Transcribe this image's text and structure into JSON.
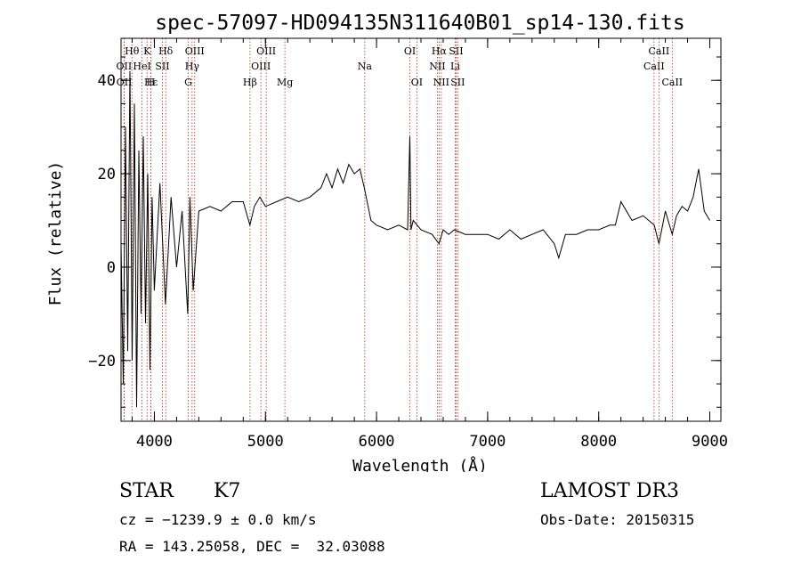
{
  "chart_data": {
    "type": "line",
    "title": "spec-57097-HD094135N311640B01_sp14-130.fits",
    "xlabel": "Wavelength (Å)",
    "ylabel": "Flux (relative)",
    "xlim": [
      3700,
      9100
    ],
    "ylim": [
      -33,
      49
    ],
    "x_ticks": [
      4000,
      5000,
      6000,
      7000,
      8000,
      9000
    ],
    "y_ticks": [
      -20,
      0,
      20,
      40
    ],
    "grid": false,
    "series": [
      {
        "color": "#000000",
        "x": [
          3700,
          3720,
          3740,
          3760,
          3780,
          3800,
          3820,
          3840,
          3860,
          3880,
          3900,
          3920,
          3940,
          3960,
          3980,
          4000,
          4050,
          4100,
          4150,
          4200,
          4250,
          4300,
          4320,
          4350,
          4400,
          4500,
          4600,
          4700,
          4800,
          4860,
          4900,
          4950,
          5000,
          5100,
          5200,
          5300,
          5400,
          5500,
          5550,
          5600,
          5650,
          5700,
          5750,
          5800,
          5850,
          5890,
          5950,
          6000,
          6100,
          6200,
          6280,
          6300,
          6310,
          6330,
          6400,
          6500,
          6562,
          6600,
          6650,
          6700,
          6800,
          6900,
          7000,
          7100,
          7200,
          7300,
          7400,
          7500,
          7600,
          7640,
          7700,
          7800,
          7900,
          8000,
          8100,
          8150,
          8200,
          8300,
          8400,
          8450,
          8500,
          8542,
          8600,
          8662,
          8700,
          8750,
          8800,
          8850,
          8900,
          8950,
          9000
        ],
        "values": [
          5,
          -25,
          30,
          -18,
          42,
          -20,
          35,
          -30,
          25,
          -10,
          28,
          -12,
          20,
          -22,
          15,
          -5,
          18,
          -8,
          15,
          0,
          12,
          -10,
          15,
          -5,
          12,
          13,
          12,
          14,
          14,
          9,
          13,
          15,
          13,
          14,
          15,
          14,
          15,
          17,
          20,
          17,
          21,
          18,
          22,
          20,
          21,
          17,
          10,
          9,
          8,
          9,
          8,
          28,
          8,
          10,
          8,
          7,
          5,
          8,
          7,
          8,
          7,
          7,
          7,
          6,
          8,
          6,
          7,
          8,
          5,
          2,
          7,
          7,
          8,
          8,
          9,
          9,
          14,
          10,
          11,
          10,
          9,
          5,
          12,
          7,
          11,
          13,
          12,
          15,
          21,
          12,
          10
        ]
      }
    ],
    "lines": [
      {
        "label": "Hα",
        "x": 6563,
        "row": 1,
        "anchor": "middle"
      },
      {
        "label": "Hβ",
        "x": 4861,
        "row": 3,
        "anchor": "middle"
      },
      {
        "label": "Hγ",
        "x": 4340,
        "row": 2,
        "anchor": "middle"
      },
      {
        "label": "Hδ",
        "x": 4102,
        "row": 1,
        "anchor": "middle"
      },
      {
        "label": "Hε",
        "x": 3970,
        "row": 3,
        "anchor": "middle"
      },
      {
        "label": "Hθ",
        "x": 3798,
        "row": 1,
        "anchor": "middle"
      },
      {
        "label": "K",
        "x": 3934,
        "row": 1,
        "anchor": "middle"
      },
      {
        "label": "H",
        "x": 3969,
        "row": 3,
        "anchor": "middle"
      },
      {
        "label": "G",
        "x": 4305,
        "row": 3,
        "anchor": "middle"
      },
      {
        "label": "Mg",
        "x": 5175,
        "row": 3,
        "anchor": "middle"
      },
      {
        "label": "Na",
        "x": 5894,
        "row": 2,
        "anchor": "middle"
      },
      {
        "label": "OI",
        "x": 6300,
        "row": 1,
        "anchor": "middle"
      },
      {
        "label": "OI",
        "x": 6363,
        "row": 3,
        "anchor": "middle"
      },
      {
        "label": "OII",
        "x": 3727,
        "row": 2,
        "anchor": "middle"
      },
      {
        "label": "OII",
        "x": 3729,
        "row": 3,
        "anchor": "middle"
      },
      {
        "label": "OIII",
        "x": 4363,
        "row": 1,
        "anchor": "middle"
      },
      {
        "label": "OIII",
        "x": 4959,
        "row": 2,
        "anchor": "middle"
      },
      {
        "label": "OIII",
        "x": 5007,
        "row": 1,
        "anchor": "middle"
      },
      {
        "label": "HeI",
        "x": 3889,
        "row": 2,
        "anchor": "middle"
      },
      {
        "label": "SII",
        "x": 4072,
        "row": 2,
        "anchor": "middle"
      },
      {
        "label": "NII",
        "x": 6548,
        "row": 2,
        "anchor": "middle"
      },
      {
        "label": "NII",
        "x": 6583,
        "row": 3,
        "anchor": "middle"
      },
      {
        "label": "SII",
        "x": 6716,
        "row": 1,
        "anchor": "middle"
      },
      {
        "label": "SII",
        "x": 6731,
        "row": 3,
        "anchor": "middle"
      },
      {
        "label": "Li",
        "x": 6708,
        "row": 2,
        "anchor": "middle"
      },
      {
        "label": "CaII",
        "x": 8498,
        "row": 2,
        "anchor": "middle"
      },
      {
        "label": "CaII",
        "x": 8542,
        "row": 1,
        "anchor": "middle"
      },
      {
        "label": "CaII",
        "x": 8662,
        "row": 3,
        "anchor": "middle"
      }
    ]
  },
  "info": {
    "class_label": "STAR",
    "subclass": "K7",
    "survey": "LAMOST DR3",
    "cz": "cz = −1239.9 ± 0.0 km/s",
    "obs_date": "Obs-Date: 20150315",
    "coords": "RA = 143.25058, DEC =  32.03088"
  },
  "colors": {
    "spectrum": "#000000",
    "line_marker": "#b03020"
  }
}
